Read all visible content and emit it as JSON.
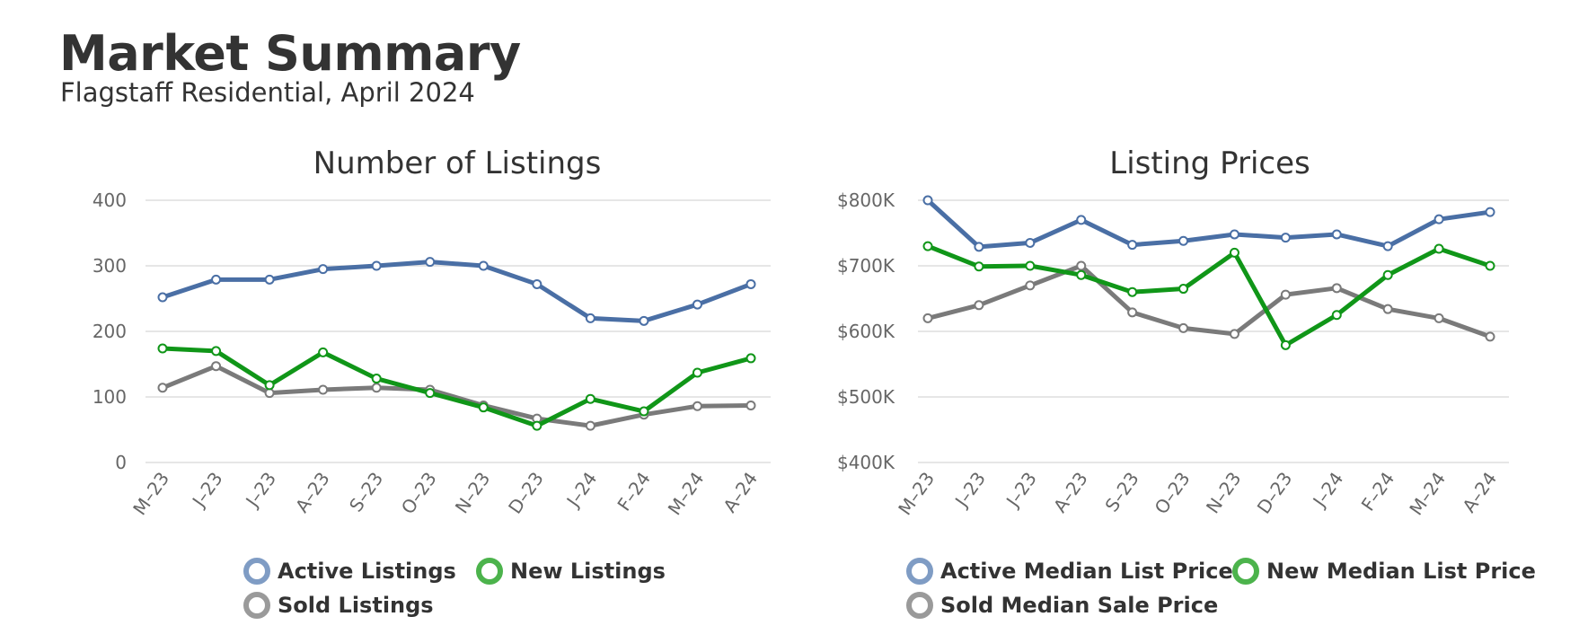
{
  "header": {
    "title": "Market Summary",
    "subtitle": "Flagstaff Residential, April 2024"
  },
  "colors": {
    "active": "#4a6fa5",
    "new": "#109618",
    "sold": "#7a7a7a",
    "legend_active": "#7f9cc4",
    "legend_new": "#4cb34c",
    "legend_sold": "#9a9a9a",
    "grid": "#e6e6e6"
  },
  "chart_data": [
    {
      "type": "line",
      "title": "Number of Listings",
      "categories": [
        "M–23",
        "J–23",
        "J–23",
        "A–23",
        "S–23",
        "O–23",
        "N–23",
        "D–23",
        "J–24",
        "F–24",
        "M–24",
        "A–24"
      ],
      "ylim": [
        0,
        400
      ],
      "yticks": [
        0,
        100,
        200,
        300,
        400
      ],
      "ytick_labels": [
        "0",
        "100",
        "200",
        "300",
        "400"
      ],
      "grid": true,
      "legend_position": "bottom",
      "series": [
        {
          "name": "Active Listings",
          "color_key": "active",
          "values": [
            252,
            279,
            279,
            295,
            300,
            306,
            300,
            272,
            220,
            216,
            241,
            272
          ]
        },
        {
          "name": "New Listings",
          "color_key": "new",
          "values": [
            174,
            170,
            118,
            168,
            128,
            106,
            84,
            56,
            97,
            78,
            137,
            159
          ]
        },
        {
          "name": "Sold Listings",
          "color_key": "sold",
          "values": [
            114,
            147,
            106,
            111,
            114,
            111,
            87,
            67,
            56,
            73,
            86,
            87
          ]
        }
      ]
    },
    {
      "type": "line",
      "title": "Listing Prices",
      "categories": [
        "M–23",
        "J–23",
        "J–23",
        "A–23",
        "S–23",
        "O–23",
        "N–23",
        "D–23",
        "J–24",
        "F–24",
        "M–24",
        "A–24"
      ],
      "ylim": [
        400,
        800
      ],
      "yticks": [
        400,
        500,
        600,
        700,
        800
      ],
      "ytick_labels": [
        "$400K",
        "$500K",
        "$600K",
        "$700K",
        "$800K"
      ],
      "grid": true,
      "legend_position": "bottom",
      "series": [
        {
          "name": "Active Median List Price",
          "color_key": "active",
          "values": [
            800,
            729,
            735,
            770,
            732,
            738,
            748,
            743,
            748,
            730,
            771,
            782
          ]
        },
        {
          "name": "New Median List Price",
          "color_key": "new",
          "values": [
            730,
            699,
            700,
            686,
            660,
            665,
            720,
            579,
            625,
            686,
            726,
            700
          ]
        },
        {
          "name": "Sold Median Sale Price",
          "color_key": "sold",
          "values": [
            620,
            640,
            670,
            700,
            629,
            605,
            596,
            656,
            666,
            634,
            620,
            592
          ]
        }
      ]
    }
  ]
}
